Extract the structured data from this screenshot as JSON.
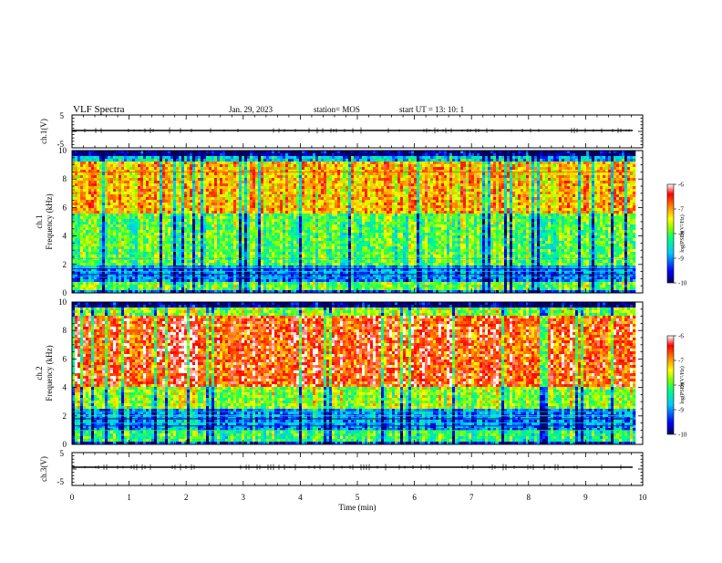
{
  "header": {
    "title": "VLF Spectra",
    "date": "Jan. 29, 2023",
    "station": "station= MOS",
    "start_ut": "start  UT =   13: 10: 1"
  },
  "chart_data": [
    {
      "type": "line",
      "name": "ch1-waveform",
      "ylabel": "ch.1(V)",
      "ylim": [
        -5,
        5
      ],
      "yticks": [
        "5",
        "-5"
      ],
      "xlim": [
        0,
        10
      ],
      "series": [
        {
          "x": [
            0,
            9.83
          ],
          "y": [
            0,
            0
          ]
        }
      ]
    },
    {
      "type": "heatmap",
      "name": "ch1-spectrogram",
      "ylabel_top": "ch.1",
      "ylabel": "Frequency (kHz)",
      "ylim": [
        0,
        10
      ],
      "yticks": [
        "0",
        "2",
        "4",
        "6",
        "8",
        "10"
      ],
      "xlim": [
        0,
        10
      ],
      "data_extent_x": 9.83,
      "colorbar": {
        "label": "log(PSD)(V²/Hz)",
        "range": [
          -10,
          -6
        ],
        "ticks": [
          "-6",
          "-7",
          "-8",
          "-9",
          "-10"
        ]
      }
    },
    {
      "type": "heatmap",
      "name": "ch2-spectrogram",
      "ylabel_top": "ch.2",
      "ylabel": "Frequency (kHz)",
      "ylim": [
        0,
        10
      ],
      "yticks": [
        "0",
        "2",
        "4",
        "6",
        "8",
        "10"
      ],
      "xlim": [
        0,
        10
      ],
      "data_extent_x": 9.83,
      "colorbar": {
        "label": "log(PSD)(V²/Hz)",
        "range": [
          -10,
          -6
        ],
        "ticks": [
          "-6",
          "-7",
          "-8",
          "-9",
          "-10"
        ]
      }
    },
    {
      "type": "line",
      "name": "ch3-waveform",
      "ylabel": "ch.3(V)",
      "ylim": [
        -5,
        5
      ],
      "yticks": [
        "5",
        "-5"
      ],
      "xlim": [
        0,
        10
      ],
      "series": [
        {
          "x": [
            0,
            9.83
          ],
          "y": [
            0,
            0
          ]
        }
      ]
    }
  ],
  "xaxis": {
    "label": "Time (min)",
    "ticks": [
      "0",
      "1",
      "2",
      "3",
      "4",
      "5",
      "6",
      "7",
      "8",
      "9",
      "10"
    ]
  }
}
